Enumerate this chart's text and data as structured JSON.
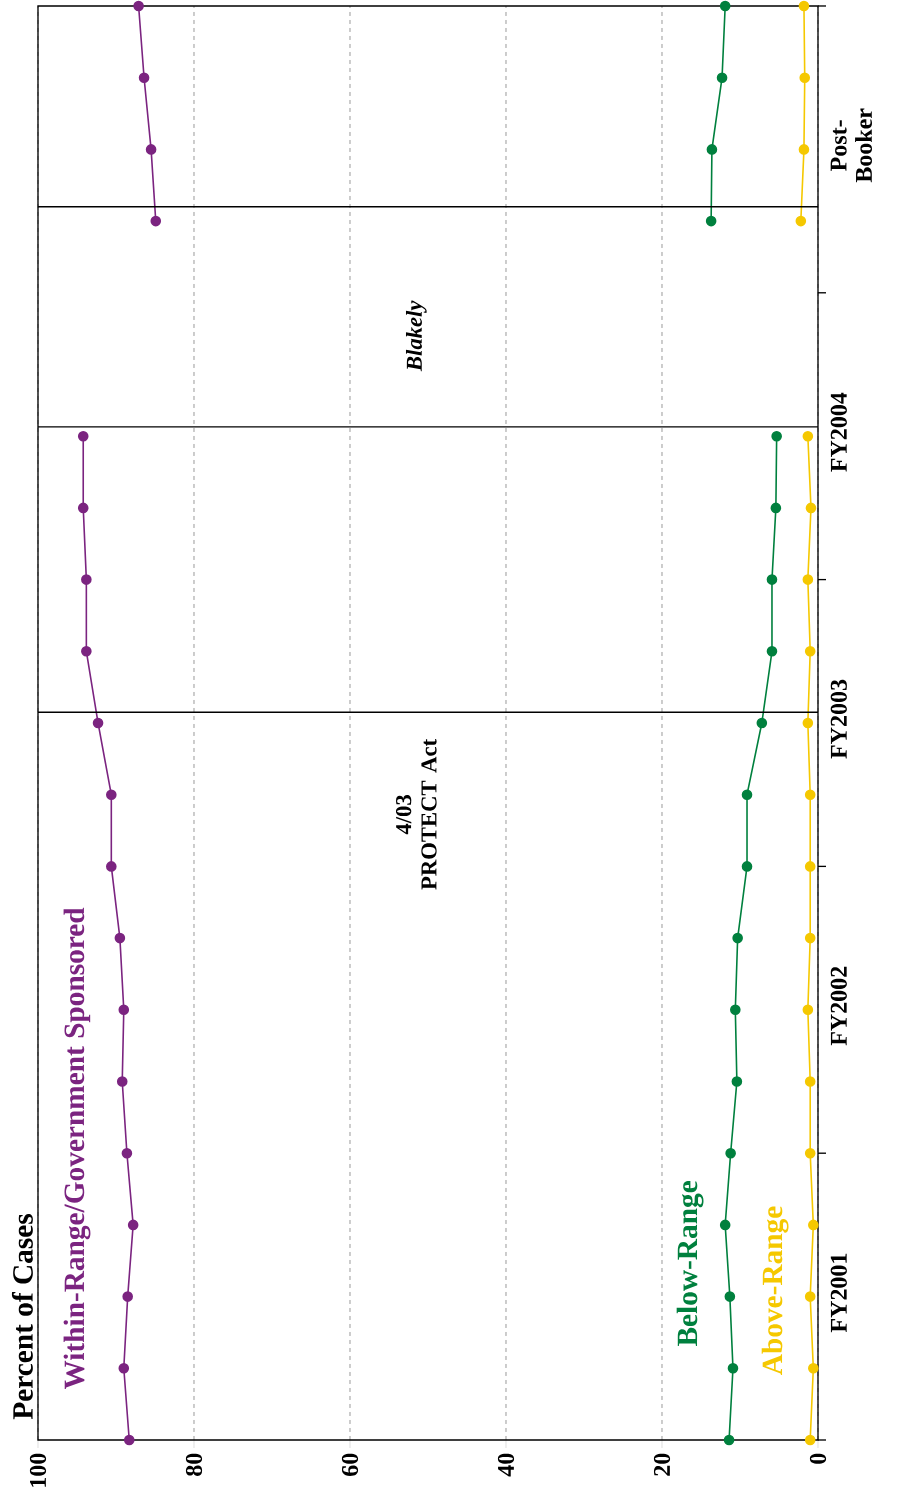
{
  "chart_data": {
    "type": "line",
    "orientation": "horizontal",
    "ylabel": "Percent of Cases",
    "categories": [
      null,
      null,
      "Post-Booker",
      null,
      null,
      null,
      "FY2004",
      null,
      null,
      null,
      "FY2003",
      null,
      null,
      null,
      "FY2002",
      null,
      null,
      null,
      "FY2001",
      null,
      null
    ],
    "xlim": [
      100,
      0
    ],
    "xticks": [
      0,
      20,
      40,
      60,
      80,
      100
    ],
    "grid": "x",
    "marker": "circle",
    "line_style": "solid",
    "series": [
      {
        "name": "Within-Range/Government Sponsored",
        "color": "#7b2480",
        "values": [
          87.1,
          86.4,
          85.5,
          84.9,
          null,
          null,
          94.2,
          94.2,
          93.8,
          93.8,
          92.3,
          90.6,
          90.6,
          89.5,
          89.0,
          89.2,
          88.6,
          87.8,
          88.5,
          89.0,
          88.3
        ]
      },
      {
        "name": "Below-Range",
        "color": "#00803e",
        "values": [
          11.9,
          12.3,
          13.6,
          13.7,
          null,
          null,
          5.3,
          5.4,
          5.9,
          5.9,
          7.2,
          9.1,
          9.1,
          10.3,
          10.6,
          10.4,
          11.2,
          11.9,
          11.3,
          10.9,
          11.4
        ]
      },
      {
        "name": "Above-Range",
        "color": "#f5c800",
        "values": [
          1.8,
          1.7,
          1.8,
          2.2,
          null,
          null,
          1.3,
          0.9,
          1.3,
          1.0,
          1.3,
          1.0,
          1.0,
          1.0,
          1.3,
          1.0,
          1.0,
          0.6,
          1.0,
          0.6,
          1.0
        ]
      }
    ],
    "annotations": [
      "4/03 PROTECT Act",
      "Blakely"
    ]
  }
}
